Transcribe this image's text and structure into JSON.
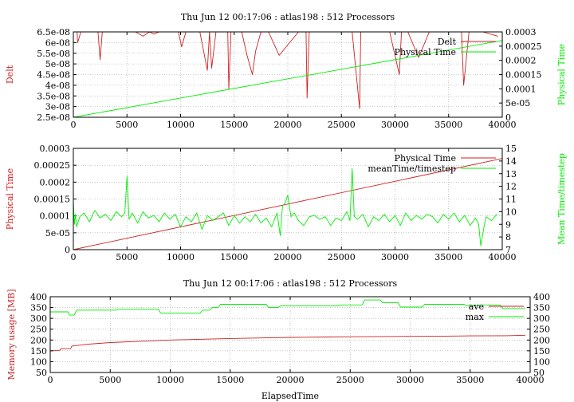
{
  "colors": {
    "red": "#cc2222",
    "green": "#00ee00",
    "grid": "#a0a0a0",
    "axis": "#000000"
  },
  "chart_data": [
    {
      "type": "line",
      "title": "Thu Jun 12 00:17:06 : atlas198 : 512 Processors",
      "xlabel": "",
      "ylabel": "Delt",
      "y2label": "Physical Time",
      "xlim": [
        0,
        40000
      ],
      "ylim": [
        2.5e-08,
        6.5e-08
      ],
      "y2lim": [
        0,
        0.0003
      ],
      "xticks": [
        "0",
        "5000",
        "10000",
        "15000",
        "20000",
        "25000",
        "30000",
        "35000",
        "40000"
      ],
      "yticks": [
        "2.5e-08",
        "3e-08",
        "3.5e-08",
        "4e-08",
        "4.5e-08",
        "5e-08",
        "5.5e-08",
        "6e-08",
        "6.5e-08"
      ],
      "y2ticks": [
        "0",
        "5e-05",
        "0.0001",
        "0.00015",
        "0.0002",
        "0.00025",
        "0.0003"
      ],
      "grid": true,
      "legend_position": "top-right",
      "series": [
        {
          "name": "Delt",
          "axis": "left",
          "color": "red",
          "x": [
            0,
            350,
            400,
            700,
            900,
            2300,
            2500,
            2700,
            4200,
            5800,
            6500,
            7100,
            7500,
            8000,
            9800,
            10100,
            10500,
            11800,
            12500,
            12700,
            12900,
            13300,
            13800,
            14400,
            14500,
            14700,
            15700,
            16200,
            16700,
            17000,
            17500,
            18200,
            19200,
            21000,
            21700,
            21800,
            22000,
            23400,
            26000,
            26700,
            26800,
            27300,
            29500,
            30400,
            30600,
            31200,
            32200,
            33200,
            34800,
            35700,
            36200,
            36400,
            36900,
            38200,
            39600
          ],
          "y": [
            6.5e-08,
            6.5e-08,
            6e-08,
            6.5e-08,
            6.5e-08,
            6.5e-08,
            5.2e-08,
            6.5e-08,
            6.5e-08,
            6.5e-08,
            6.3e-08,
            6.5e-08,
            6.4e-08,
            6.5e-08,
            6.5e-08,
            5.8e-08,
            6.5e-08,
            6.5e-08,
            4.7e-08,
            6.5e-08,
            4.8e-08,
            6.5e-08,
            6.5e-08,
            6.5e-08,
            3.8e-08,
            6.5e-08,
            6.5e-08,
            5.4e-08,
            4.5e-08,
            5.6e-08,
            6.5e-08,
            6.5e-08,
            5.4e-08,
            6.5e-08,
            6.5e-08,
            3.4e-08,
            6.5e-08,
            6.5e-08,
            6.5e-08,
            2.9e-08,
            6.5e-08,
            6.5e-08,
            6.5e-08,
            4.5e-08,
            6.5e-08,
            6.5e-08,
            5.3e-08,
            6.5e-08,
            6.5e-08,
            6.5e-08,
            6.5e-08,
            4e-08,
            6.5e-08,
            6.5e-08,
            6.3e-08
          ]
        },
        {
          "name": "Physical Time",
          "axis": "right",
          "color": "green",
          "x": [
            0,
            40000
          ],
          "y": [
            0,
            0.00027
          ]
        }
      ]
    },
    {
      "type": "line",
      "title": "",
      "xlabel": "",
      "ylabel": "Physical Time",
      "y2label": "Mean Time/timestep",
      "xlim": [
        0,
        40000
      ],
      "ylim": [
        0,
        0.0003
      ],
      "y2lim": [
        7,
        15
      ],
      "xticks": [
        "0",
        "5000",
        "10000",
        "15000",
        "20000",
        "25000",
        "30000",
        "35000",
        "40000"
      ],
      "yticks": [
        "0",
        "5e-05",
        "0.0001",
        "0.00015",
        "0.0002",
        "0.00025",
        "0.0003"
      ],
      "y2ticks": [
        "7",
        "8",
        "9",
        "10",
        "11",
        "12",
        "13",
        "14",
        "15"
      ],
      "grid": true,
      "legend_position": "top-right",
      "series": [
        {
          "name": "Physical Time",
          "axis": "left",
          "color": "red",
          "x": [
            0,
            40000
          ],
          "y": [
            0,
            0.00027
          ]
        },
        {
          "name": "meanTime/timestep",
          "axis": "right",
          "color": "green",
          "x": [
            0,
            100,
            200,
            300,
            600,
            1000,
            1500,
            2000,
            2500,
            3000,
            3500,
            4000,
            4500,
            4800,
            5000,
            5200,
            5500,
            6000,
            6500,
            7000,
            7500,
            8000,
            8500,
            9000,
            9500,
            10000,
            10500,
            11000,
            11500,
            12000,
            12500,
            13000,
            13500,
            14000,
            14500,
            15000,
            15500,
            16000,
            16500,
            17000,
            17500,
            18000,
            18500,
            19000,
            19300,
            19500,
            19800,
            20000,
            20300,
            20600,
            21000,
            21500,
            22000,
            22500,
            23000,
            23500,
            24000,
            24500,
            25000,
            25500,
            25800,
            26000,
            26200,
            26500,
            27000,
            27500,
            28000,
            28500,
            29000,
            29500,
            30000,
            30500,
            31000,
            31500,
            32000,
            32500,
            33000,
            33500,
            34000,
            34500,
            35000,
            35500,
            36000,
            36500,
            37000,
            37500,
            37800,
            38000,
            38300,
            38500,
            39000,
            39500
          ],
          "y": [
            10.8,
            9.0,
            9.8,
            8.8,
            9.6,
            9.9,
            9.2,
            10.1,
            9.5,
            9.8,
            9.3,
            10.0,
            9.6,
            9.9,
            12.8,
            9.4,
            9.9,
            9.1,
            10.0,
            9.5,
            9.7,
            9.2,
            9.9,
            9.4,
            9.8,
            8.8,
            9.6,
            9.2,
            9.9,
            8.6,
            9.7,
            9.3,
            9.6,
            9.9,
            8.9,
            9.7,
            9.1,
            9.6,
            9.2,
            9.8,
            9.1,
            9.5,
            8.8,
            9.9,
            8.1,
            10.4,
            10.8,
            11.3,
            9.6,
            9.9,
            9.3,
            8.9,
            9.6,
            9.7,
            9.4,
            9.6,
            8.9,
            9.5,
            9.3,
            10.0,
            9.3,
            13.4,
            9.6,
            9.4,
            9.8,
            8.8,
            9.6,
            9.3,
            9.8,
            9.2,
            9.7,
            8.9,
            9.9,
            9.3,
            9.7,
            9.4,
            9.8,
            9.6,
            9.1,
            9.8,
            9.4,
            9.9,
            9.2,
            9.7,
            8.9,
            9.5,
            9.0,
            7.3,
            8.8,
            9.6,
            9.3,
            9.8
          ]
        }
      ]
    },
    {
      "type": "line",
      "title": "Thu Jun 12 00:17:06 : atlas198 : 512 Processors",
      "xlabel": "ElapsedTime",
      "ylabel": "Memory usage [MB]",
      "y2label": "",
      "xlim": [
        0,
        40000
      ],
      "ylim": [
        50,
        400
      ],
      "y2lim": [
        50,
        400
      ],
      "xticks": [
        "0",
        "5000",
        "10000",
        "15000",
        "20000",
        "25000",
        "30000",
        "35000",
        "40000"
      ],
      "yticks": [
        "50",
        "100",
        "150",
        "200",
        "250",
        "300",
        "350",
        "400"
      ],
      "y2ticks": [
        "50",
        "100",
        "150",
        "200",
        "250",
        "300",
        "350",
        "400"
      ],
      "grid": true,
      "legend_position": "top-right",
      "series": [
        {
          "name": "ave",
          "axis": "left",
          "color": "red",
          "x": [
            0,
            800,
            900,
            1700,
            1800,
            3000,
            5000,
            8000,
            10000,
            13000,
            15000,
            18000,
            20000,
            23000,
            25000,
            28000,
            30000,
            33000,
            35000,
            38000,
            39600
          ],
          "y": [
            152,
            152,
            160,
            160,
            172,
            180,
            188,
            195,
            200,
            204,
            207,
            210,
            212,
            214,
            215,
            216,
            217,
            218,
            219,
            220,
            222
          ]
        },
        {
          "name": "max",
          "axis": "left",
          "color": "green",
          "x": [
            0,
            1500,
            1600,
            2000,
            2200,
            5500,
            5700,
            9000,
            9200,
            12500,
            12700,
            13300,
            13500,
            14000,
            14200,
            18000,
            18200,
            19000,
            19200,
            24000,
            24200,
            26000,
            26200,
            27500,
            27700,
            29000,
            29200,
            31000,
            31200,
            34500,
            34700,
            35500,
            35700,
            37500,
            37700,
            39600
          ],
          "y": [
            330,
            330,
            315,
            315,
            338,
            338,
            342,
            342,
            325,
            325,
            338,
            338,
            350,
            350,
            365,
            365,
            350,
            350,
            358,
            358,
            362,
            362,
            385,
            385,
            372,
            372,
            352,
            352,
            365,
            365,
            358,
            358,
            362,
            362,
            345,
            345
          ]
        }
      ]
    }
  ]
}
